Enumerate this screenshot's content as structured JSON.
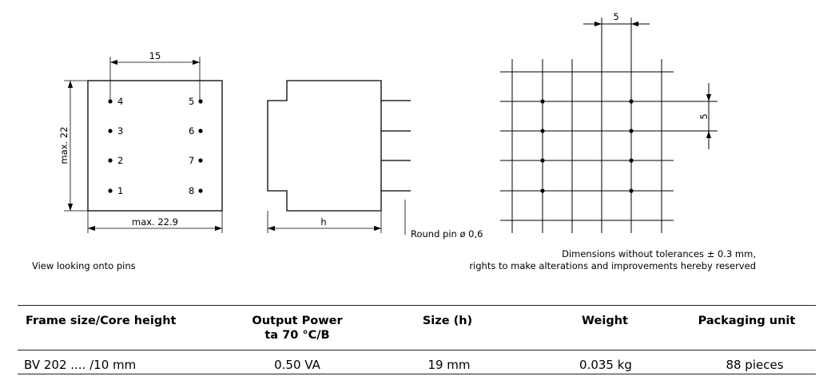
{
  "drawing": {
    "dim_width_pins": "15",
    "dim_height": "max. 22",
    "dim_width": "max. 22.9",
    "dim_h": "h",
    "pin_note": "Round pin ø 0,6",
    "grid_dim_h": "5",
    "grid_dim_v": "5",
    "pins_left": [
      "4",
      "3",
      "2",
      "1"
    ],
    "pins_right": [
      "5",
      "6",
      "7",
      "8"
    ]
  },
  "notes": {
    "view_caption": "View looking onto pins",
    "tolerance_line1": "Dimensions without tolerances ± 0.3 mm,",
    "tolerance_line2": "rights to make alterations and improvements hereby reserved"
  },
  "table": {
    "headers": {
      "frame": "Frame size/Core height",
      "power_line1": "Output Power",
      "power_line2": "ta 70 °C/B",
      "size": "Size (h)",
      "weight": "Weight",
      "packaging": "Packaging unit"
    },
    "row": {
      "frame": "BV 202 .... /10 mm",
      "power": "0.50 VA",
      "size": "19 mm",
      "weight": "0.035 kg",
      "packaging": "88 pieces"
    }
  }
}
